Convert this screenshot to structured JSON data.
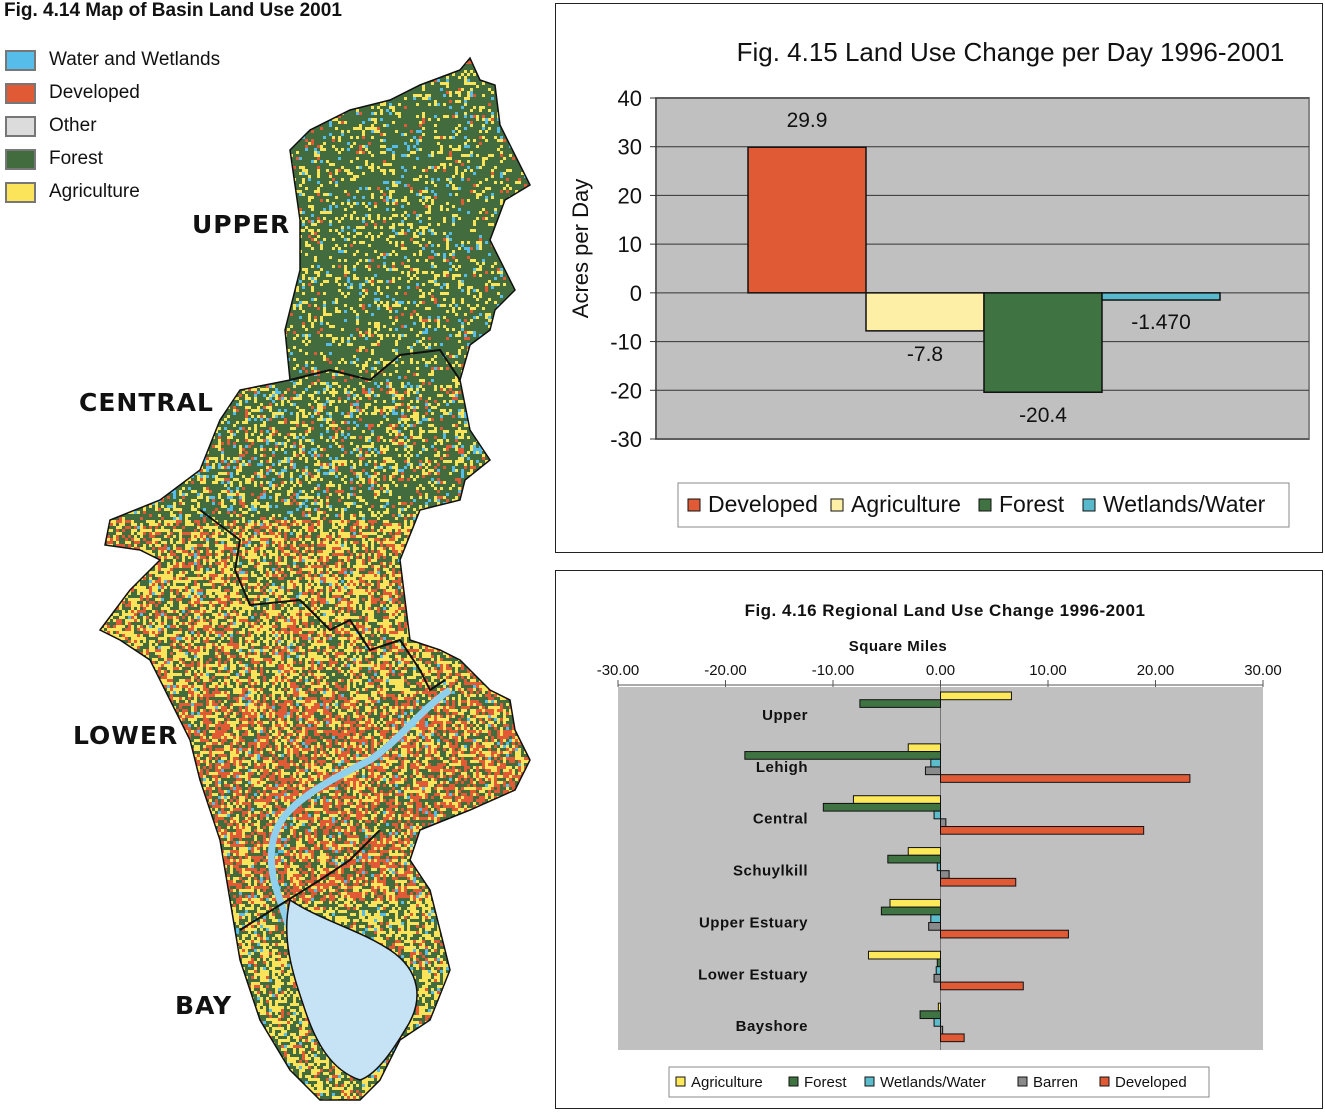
{
  "map": {
    "title": "Fig. 4.14 Map of Basin Land Use 2001",
    "legend": [
      {
        "label": "Water and Wetlands",
        "color": "#56bdea"
      },
      {
        "label": "Developed",
        "color": "#e05a36"
      },
      {
        "label": "Other",
        "color": "#dcdcdc"
      },
      {
        "label": "Forest",
        "color": "#426b3e"
      },
      {
        "label": "Agriculture",
        "color": "#fbe35a"
      }
    ],
    "regions": [
      "UPPER",
      "CENTRAL",
      "LOWER",
      "BAY"
    ]
  },
  "chart_data": [
    {
      "type": "bar",
      "title": "Fig. 4.15 Land Use Change per Day 1996-2001",
      "xlabel": "",
      "ylabel": "Acres per Day",
      "ylim": [
        -30,
        40
      ],
      "yticks": [
        "40",
        "30",
        "20",
        "10",
        "0",
        "-10",
        "-20",
        "-30"
      ],
      "grid": true,
      "legend_position": "bottom",
      "series": [
        {
          "name": "Developed",
          "value": 29.9,
          "label": "29.9",
          "color": "#e05a36"
        },
        {
          "name": "Agriculture",
          "value": -7.8,
          "label": "-7.8",
          "color": "#fdf0a6"
        },
        {
          "name": "Forest",
          "value": -20.4,
          "label": "-20.4",
          "color": "#3f7442"
        },
        {
          "name": "Wetlands/Water",
          "value": -1.47,
          "label": "-1.470",
          "color": "#58b8cc"
        }
      ]
    },
    {
      "type": "bar",
      "orientation": "horizontal",
      "title": "Fig. 4.16 Regional Land Use Change 1996-2001",
      "xlabel": "Square Miles",
      "ylabel": "",
      "xlim": [
        -30,
        30
      ],
      "xticks": [
        "-30.00",
        "-20.00",
        "-10.00",
        "0.00",
        "10.00",
        "20.00",
        "30.00"
      ],
      "grid": false,
      "legend_position": "bottom",
      "categories": [
        "Upper",
        "Lehigh",
        "Central",
        "Schuylkill",
        "Upper Estuary",
        "Lower Estuary",
        "Bayshore"
      ],
      "series": [
        {
          "name": "Agriculture",
          "color": "#fde95a",
          "values": [
            6.6,
            -3.0,
            -8.1,
            -3.0,
            -4.7,
            -6.7,
            -0.2
          ]
        },
        {
          "name": "Forest",
          "color": "#3f7442",
          "values": [
            -7.5,
            -18.2,
            -10.9,
            -4.9,
            -5.5,
            -0.3,
            -1.9
          ]
        },
        {
          "name": "Wetlands/Water",
          "color": "#5bbccc",
          "values": [
            0,
            -0.9,
            -0.6,
            -0.3,
            -0.9,
            -0.4,
            -0.6
          ]
        },
        {
          "name": "Barren",
          "color": "#8a8a8a",
          "values": [
            0,
            -1.4,
            0.5,
            0.8,
            -1.1,
            -0.6,
            0.2
          ]
        },
        {
          "name": "Developed",
          "color": "#e05a36",
          "values": [
            0,
            23.2,
            18.9,
            7.0,
            11.9,
            7.7,
            2.2
          ]
        }
      ]
    }
  ]
}
